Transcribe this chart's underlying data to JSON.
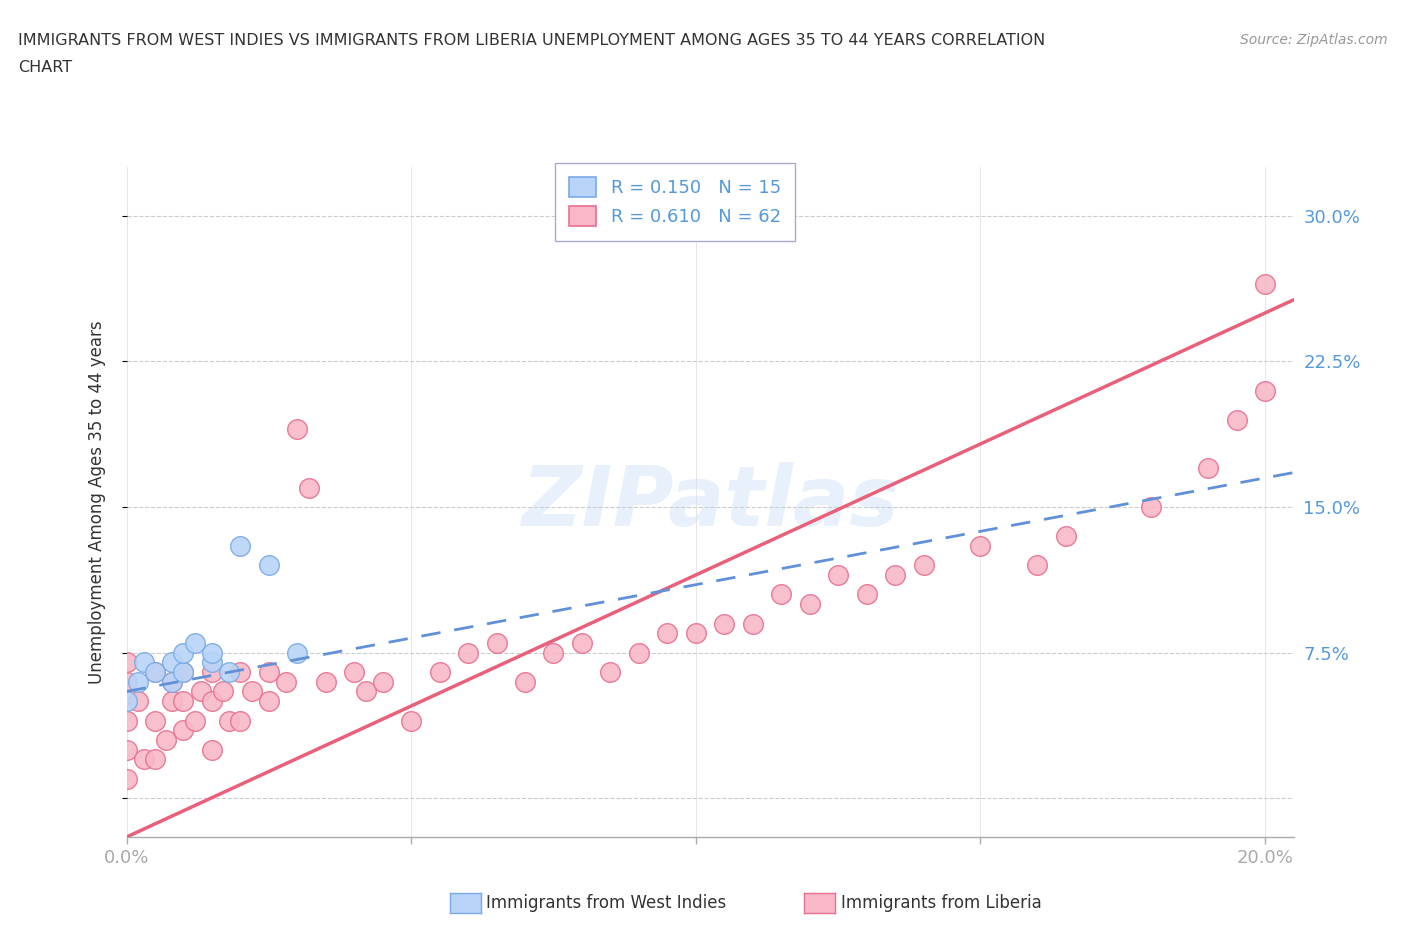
{
  "title_line1": "IMMIGRANTS FROM WEST INDIES VS IMMIGRANTS FROM LIBERIA UNEMPLOYMENT AMONG AGES 35 TO 44 YEARS CORRELATION",
  "title_line2": "CHART",
  "source": "Source: ZipAtlas.com",
  "ylabel": "Unemployment Among Ages 35 to 44 years",
  "xlim": [
    0.0,
    0.205
  ],
  "ylim": [
    -0.02,
    0.325
  ],
  "xticks": [
    0.0,
    0.05,
    0.1,
    0.15,
    0.2
  ],
  "xtick_labels": [
    "0.0%",
    "",
    "",
    "",
    "20.0%"
  ],
  "yticks": [
    0.0,
    0.075,
    0.15,
    0.225,
    0.3
  ],
  "ytick_labels": [
    "",
    "7.5%",
    "15.0%",
    "22.5%",
    "30.0%"
  ],
  "west_indies_color": "#b8d4f8",
  "liberia_color": "#f8b8c8",
  "west_indies_edge_color": "#7aaae8",
  "liberia_edge_color": "#e87090",
  "west_indies_line_color": "#6090d8",
  "liberia_line_color": "#e8607a",
  "watermark": "ZIPatlas",
  "legend_R_west_indies": "R = 0.150",
  "legend_N_west_indies": "N = 15",
  "legend_R_liberia": "R = 0.610",
  "legend_N_liberia": "N = 62",
  "west_indies_x": [
    0.0,
    0.002,
    0.003,
    0.005,
    0.008,
    0.008,
    0.01,
    0.01,
    0.012,
    0.015,
    0.015,
    0.018,
    0.02,
    0.025,
    0.03
  ],
  "west_indies_y": [
    0.05,
    0.06,
    0.07,
    0.065,
    0.06,
    0.07,
    0.065,
    0.075,
    0.08,
    0.07,
    0.075,
    0.065,
    0.13,
    0.12,
    0.075
  ],
  "liberia_x": [
    0.0,
    0.0,
    0.0,
    0.0,
    0.0,
    0.002,
    0.003,
    0.005,
    0.005,
    0.005,
    0.007,
    0.008,
    0.008,
    0.01,
    0.01,
    0.01,
    0.012,
    0.013,
    0.015,
    0.015,
    0.015,
    0.017,
    0.018,
    0.02,
    0.02,
    0.022,
    0.025,
    0.025,
    0.028,
    0.03,
    0.032,
    0.035,
    0.04,
    0.042,
    0.045,
    0.05,
    0.055,
    0.06,
    0.065,
    0.07,
    0.075,
    0.08,
    0.085,
    0.09,
    0.095,
    0.1,
    0.105,
    0.11,
    0.115,
    0.12,
    0.125,
    0.13,
    0.135,
    0.14,
    0.15,
    0.16,
    0.165,
    0.18,
    0.19,
    0.195,
    0.2,
    0.2
  ],
  "liberia_y": [
    0.04,
    0.025,
    0.01,
    0.06,
    0.07,
    0.05,
    0.02,
    0.02,
    0.04,
    0.065,
    0.03,
    0.05,
    0.06,
    0.035,
    0.05,
    0.065,
    0.04,
    0.055,
    0.025,
    0.05,
    0.065,
    0.055,
    0.04,
    0.04,
    0.065,
    0.055,
    0.05,
    0.065,
    0.06,
    0.19,
    0.16,
    0.06,
    0.065,
    0.055,
    0.06,
    0.04,
    0.065,
    0.075,
    0.08,
    0.06,
    0.075,
    0.08,
    0.065,
    0.075,
    0.085,
    0.085,
    0.09,
    0.09,
    0.105,
    0.1,
    0.115,
    0.105,
    0.115,
    0.12,
    0.13,
    0.12,
    0.135,
    0.15,
    0.17,
    0.195,
    0.21,
    0.265
  ],
  "liberia_line_intercept": -0.02,
  "liberia_line_slope": 1.35,
  "west_indies_line_intercept": 0.055,
  "west_indies_line_slope": 0.55,
  "grid_color": "#cccccc",
  "grid_linestyle": "--",
  "background_color": "#ffffff",
  "tick_color": "#5599dd",
  "title_color": "#333333",
  "font_color": "#333333"
}
